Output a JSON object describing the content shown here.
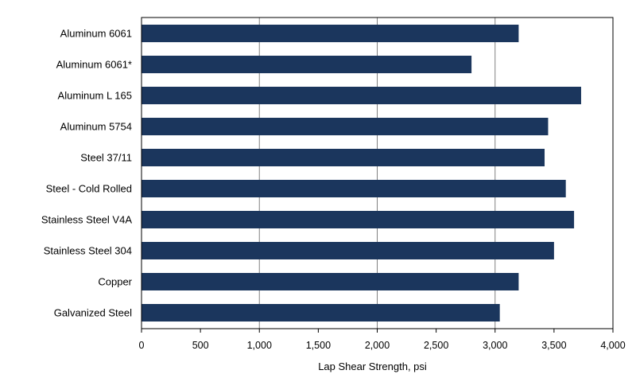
{
  "chart_data": {
    "type": "bar",
    "orientation": "horizontal",
    "categories": [
      "Aluminum 6061",
      "Aluminum 6061*",
      "Aluminum L 165",
      "Aluminum 5754",
      "Steel 37/11",
      "Steel - Cold Rolled",
      "Stainless Steel V4A",
      "Stainless Steel 304",
      "Copper",
      "Galvanized Steel"
    ],
    "values": [
      3200,
      2800,
      3730,
      3450,
      3420,
      3600,
      3670,
      3500,
      3200,
      3040
    ],
    "xlabel": "Lap Shear Strength, psi",
    "ylabel": "",
    "xlim": [
      0,
      4000
    ],
    "x_ticks": [
      0,
      500,
      1000,
      1500,
      2000,
      2500,
      3000,
      3500,
      4000
    ],
    "x_tick_labels": [
      "0",
      "500",
      "1,000",
      "1,500",
      "2,000",
      "2,500",
      "3,000",
      "3,500",
      "4,000"
    ],
    "grid": "vertical-major-every-1000",
    "legend": "none",
    "bar_color": "#1b365d",
    "grid_color": "#808080",
    "axis_color": "#000000"
  }
}
